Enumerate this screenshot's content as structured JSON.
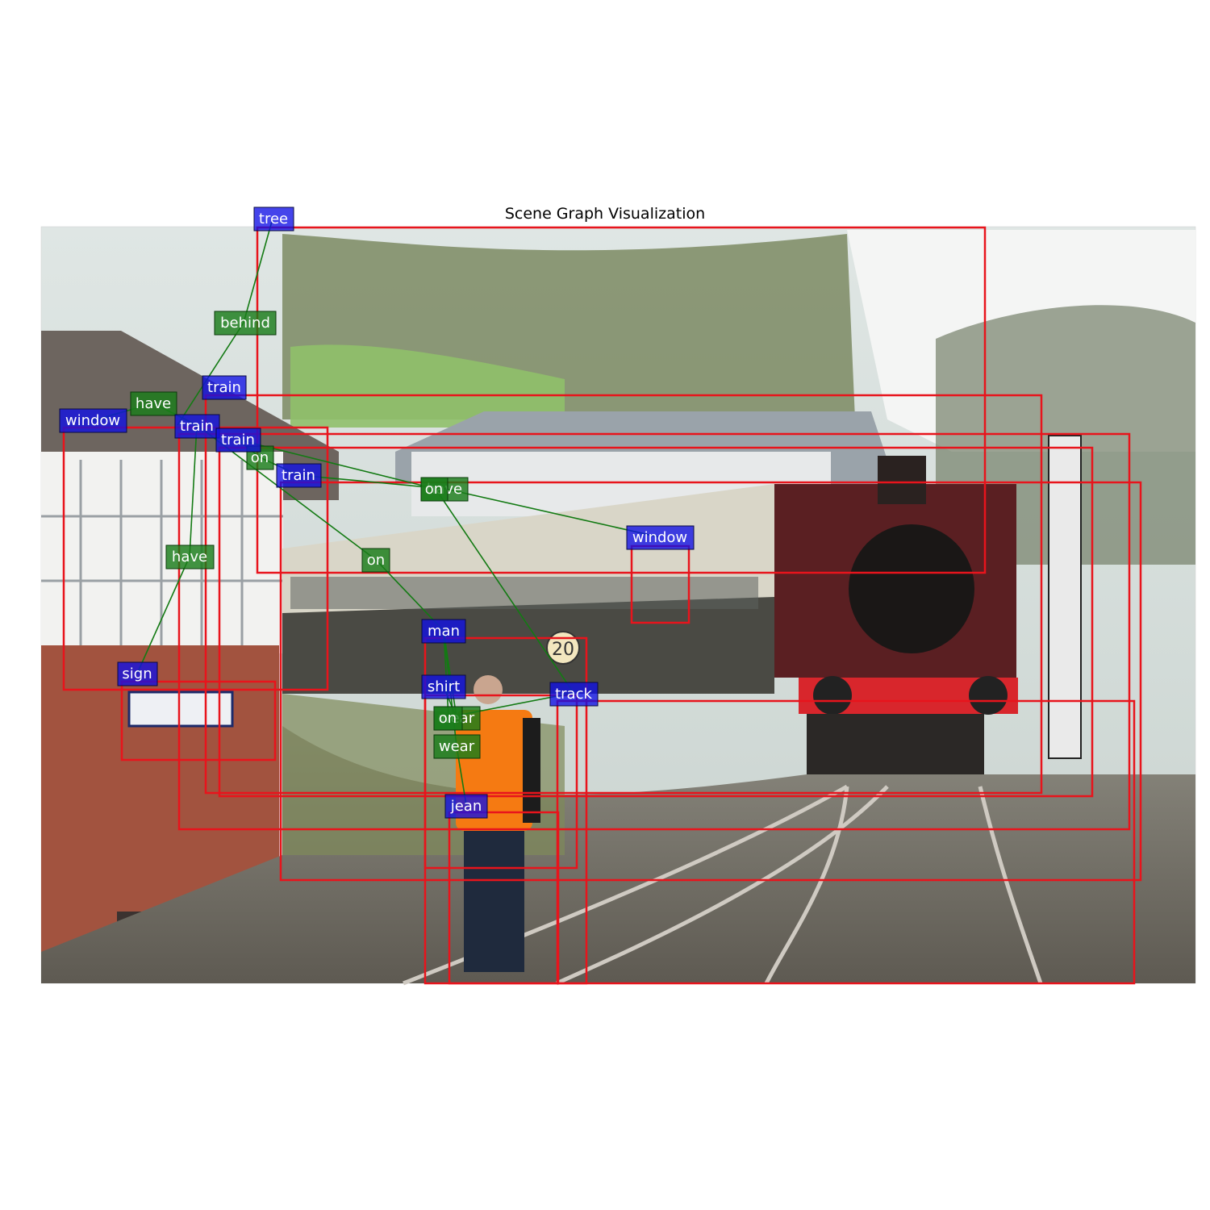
{
  "title": "Scene Graph Visualization",
  "palette": {
    "box": "#e8141c",
    "object_label": "#1010e6",
    "relation_label": "#1a7d1a",
    "edge": "#137a13"
  },
  "objects": [
    {
      "id": "tree",
      "label": "tree"
    },
    {
      "id": "train1",
      "label": "train"
    },
    {
      "id": "window1",
      "label": "window"
    },
    {
      "id": "train2",
      "label": "train"
    },
    {
      "id": "train3",
      "label": "train"
    },
    {
      "id": "train4",
      "label": "train"
    },
    {
      "id": "window2",
      "label": "window"
    },
    {
      "id": "man",
      "label": "man"
    },
    {
      "id": "sign",
      "label": "sign"
    },
    {
      "id": "shirt",
      "label": "shirt"
    },
    {
      "id": "track",
      "label": "track"
    },
    {
      "id": "jean",
      "label": "jean"
    }
  ],
  "relations": [
    {
      "label": "behind",
      "subject": "train2",
      "object": "tree"
    },
    {
      "label": "have",
      "subject": "train2",
      "object": "window1"
    },
    {
      "label": "on",
      "subject": "train3",
      "object": "track"
    },
    {
      "label": "on",
      "subject": "train4",
      "object": "track"
    },
    {
      "label": "have",
      "subject": "train3",
      "object": "window2"
    },
    {
      "label": "on",
      "subject": "train2",
      "object": "man"
    },
    {
      "label": "have",
      "subject": "train2",
      "object": "sign"
    },
    {
      "label": "wear",
      "subject": "man",
      "object": "shirt"
    },
    {
      "label": "on",
      "subject": "man",
      "object": "track"
    },
    {
      "label": "wear",
      "subject": "man",
      "object": "jean"
    }
  ]
}
